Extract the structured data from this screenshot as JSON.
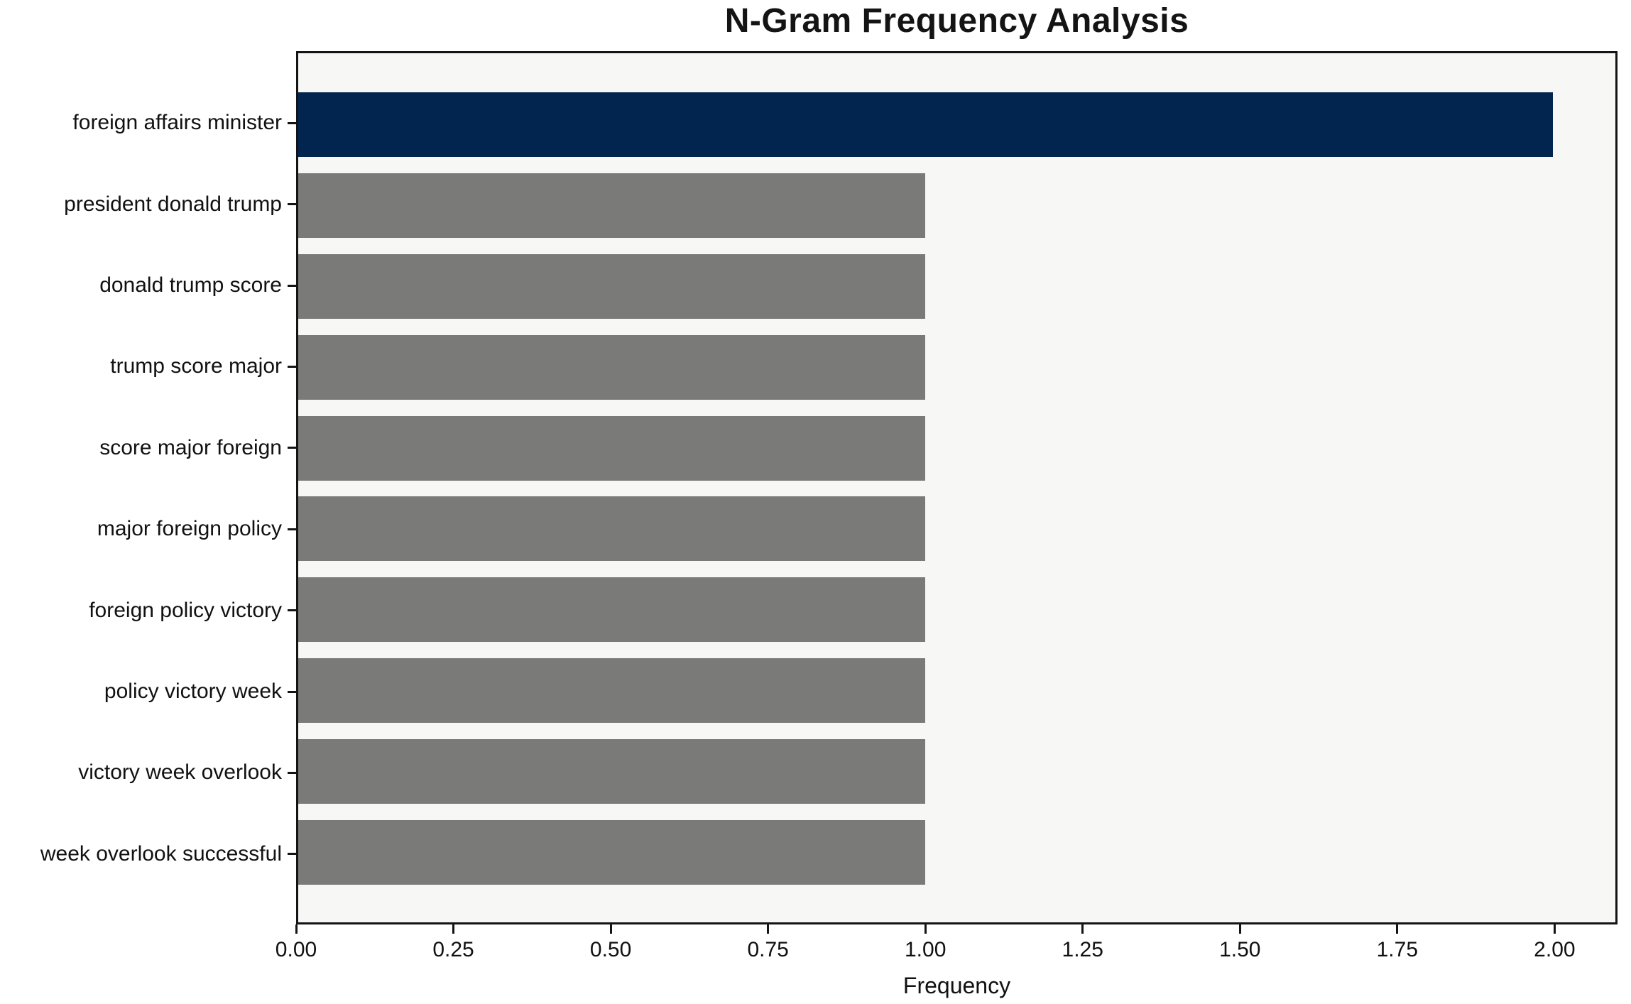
{
  "chart_data": {
    "type": "bar",
    "orientation": "horizontal",
    "title": "N-Gram Frequency Analysis",
    "xlabel": "Frequency",
    "ylabel": "",
    "categories": [
      "foreign affairs minister",
      "president donald trump",
      "donald trump score",
      "trump score major",
      "score major foreign",
      "major foreign policy",
      "foreign policy victory",
      "policy victory week",
      "victory week overlook",
      "week overlook successful"
    ],
    "values": [
      2,
      1,
      1,
      1,
      1,
      1,
      1,
      1,
      1,
      1
    ],
    "bar_colors": [
      "#02254F",
      "#7A7A78",
      "#7A7A78",
      "#7A7A78",
      "#7A7A78",
      "#7A7A78",
      "#7A7A78",
      "#7A7A78",
      "#7A7A78",
      "#7A7A78"
    ],
    "xlim": [
      0,
      2.1
    ],
    "x_tick_values": [
      0,
      0.25,
      0.5,
      0.75,
      1.0,
      1.25,
      1.5,
      1.75,
      2.0
    ],
    "x_tick_labels": [
      "0.00",
      "0.25",
      "0.50",
      "0.75",
      "1.00",
      "1.25",
      "1.50",
      "1.75",
      "2.00"
    ],
    "grid": false,
    "legend": null,
    "plot_background": "#F7F7F6",
    "figure_background": "#FFFFFF",
    "spine_color": "#141414",
    "highlight_color": "#02254F",
    "default_bar_color": "#7A7A78"
  }
}
